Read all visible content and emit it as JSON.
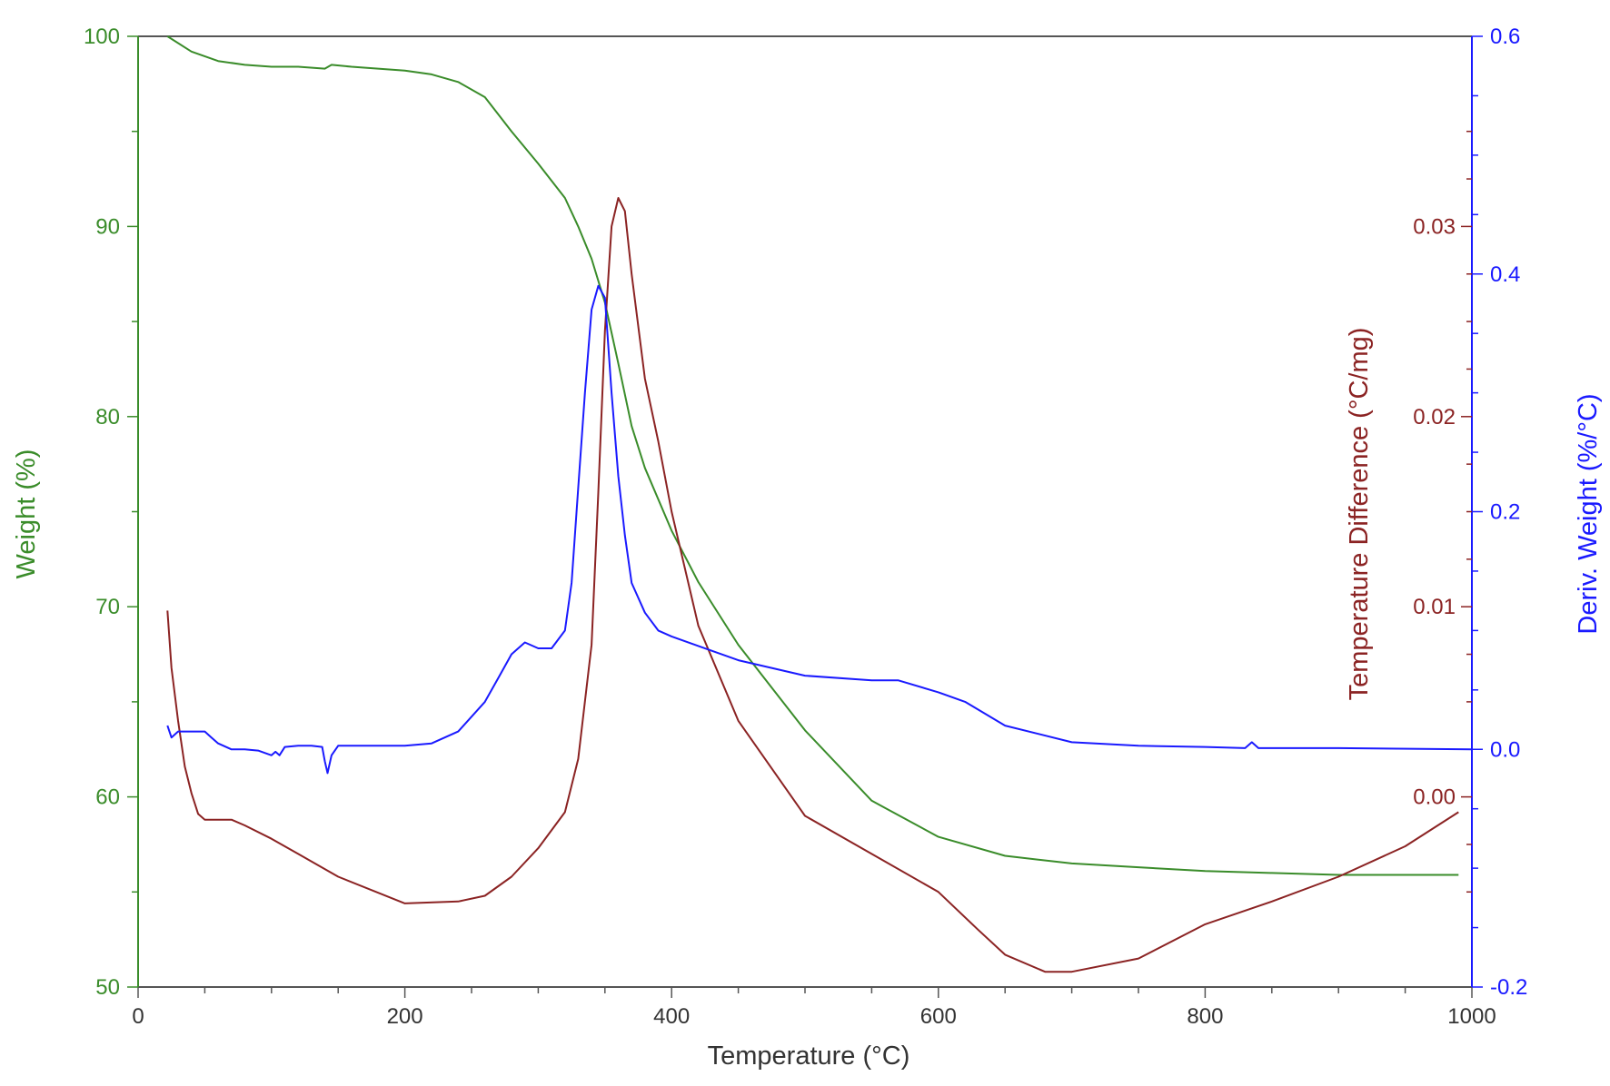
{
  "colors": {
    "weight": "#3a8c2a",
    "temp_diff": "#8b2323",
    "deriv": "#1a1aff",
    "axis_dark": "#555555"
  },
  "chart_data": {
    "type": "line",
    "xlabel": "Temperature (°C)",
    "xlim": [
      0,
      1000
    ],
    "x_ticks": [
      "0",
      "200",
      "400",
      "600",
      "800",
      "1000"
    ],
    "axes": {
      "weight": {
        "label": "Weight (%)",
        "lim": [
          50,
          100
        ],
        "ticks": [
          "50",
          "60",
          "70",
          "80",
          "90",
          "100"
        ]
      },
      "temp_diff": {
        "label": "Temperature Difference (°C/mg)",
        "lim": [
          -0.01,
          0.04
        ],
        "ticks": [
          "0.00",
          "0.01",
          "0.02",
          "0.03"
        ]
      },
      "deriv": {
        "label": "Deriv. Weight (%/°C)",
        "lim": [
          -0.2,
          0.6
        ],
        "ticks": [
          "-0.2",
          "0.0",
          "0.2",
          "0.4",
          "0.6"
        ]
      }
    },
    "series": [
      {
        "axis": "weight",
        "x": [
          22,
          40,
          60,
          80,
          100,
          120,
          140,
          145,
          160,
          180,
          200,
          220,
          240,
          260,
          280,
          300,
          320,
          330,
          340,
          350,
          360,
          370,
          380,
          400,
          420,
          450,
          500,
          550,
          600,
          650,
          700,
          750,
          800,
          850,
          900,
          950,
          990
        ],
        "y": [
          100,
          99.2,
          98.7,
          98.5,
          98.4,
          98.4,
          98.3,
          98.5,
          98.4,
          98.3,
          98.2,
          98.0,
          97.6,
          96.8,
          95.0,
          93.3,
          91.5,
          90.0,
          88.3,
          86.0,
          82.8,
          79.5,
          77.3,
          74.0,
          71.3,
          68.0,
          63.5,
          59.8,
          57.9,
          56.9,
          56.5,
          56.3,
          56.1,
          56.0,
          55.9,
          55.9,
          55.9
        ]
      },
      {
        "axis": "temp_diff",
        "x": [
          22,
          25,
          30,
          35,
          40,
          45,
          50,
          60,
          70,
          80,
          100,
          120,
          150,
          200,
          240,
          260,
          280,
          300,
          320,
          330,
          340,
          345,
          350,
          355,
          360,
          365,
          370,
          380,
          390,
          400,
          420,
          450,
          500,
          550,
          600,
          630,
          650,
          680,
          700,
          750,
          800,
          850,
          900,
          950,
          990
        ],
        "y": [
          0.0098,
          0.0068,
          0.004,
          0.0016,
          0.0002,
          -0.0009,
          -0.0012,
          -0.0012,
          -0.0012,
          -0.0015,
          -0.0022,
          -0.003,
          -0.0042,
          -0.0056,
          -0.0055,
          -0.0052,
          -0.0042,
          -0.0027,
          -0.0008,
          0.002,
          0.008,
          0.016,
          0.0245,
          0.03,
          0.0315,
          0.0308,
          0.0275,
          0.022,
          0.0187,
          0.015,
          0.009,
          0.004,
          -0.001,
          -0.003,
          -0.005,
          -0.007,
          -0.0083,
          -0.0092,
          -0.0092,
          -0.0085,
          -0.0067,
          -0.0055,
          -0.0042,
          -0.0026,
          -0.0008
        ]
      },
      {
        "axis": "deriv",
        "x": [
          22,
          25,
          30,
          40,
          50,
          55,
          60,
          70,
          80,
          90,
          100,
          103,
          106,
          110,
          120,
          130,
          138,
          140,
          142,
          145,
          150,
          170,
          200,
          220,
          240,
          260,
          270,
          280,
          290,
          300,
          310,
          320,
          325,
          330,
          335,
          340,
          345,
          350,
          355,
          360,
          365,
          370,
          380,
          390,
          400,
          420,
          450,
          500,
          550,
          570,
          600,
          620,
          650,
          700,
          750,
          800,
          830,
          835,
          840,
          900,
          1000
        ],
        "y": [
          0.02,
          0.01,
          0.015,
          0.015,
          0.015,
          0.01,
          0.005,
          0.0,
          0.0,
          -0.001,
          -0.005,
          -0.002,
          -0.005,
          0.002,
          0.003,
          0.003,
          0.002,
          -0.01,
          -0.02,
          -0.005,
          0.003,
          0.003,
          0.003,
          0.005,
          0.015,
          0.04,
          0.06,
          0.08,
          0.09,
          0.085,
          0.085,
          0.1,
          0.14,
          0.22,
          0.3,
          0.37,
          0.39,
          0.38,
          0.3,
          0.23,
          0.18,
          0.14,
          0.115,
          0.1,
          0.095,
          0.087,
          0.075,
          0.062,
          0.058,
          0.058,
          0.048,
          0.04,
          0.02,
          0.006,
          0.003,
          0.002,
          0.001,
          0.006,
          0.001,
          0.001,
          0.0
        ]
      }
    ]
  }
}
